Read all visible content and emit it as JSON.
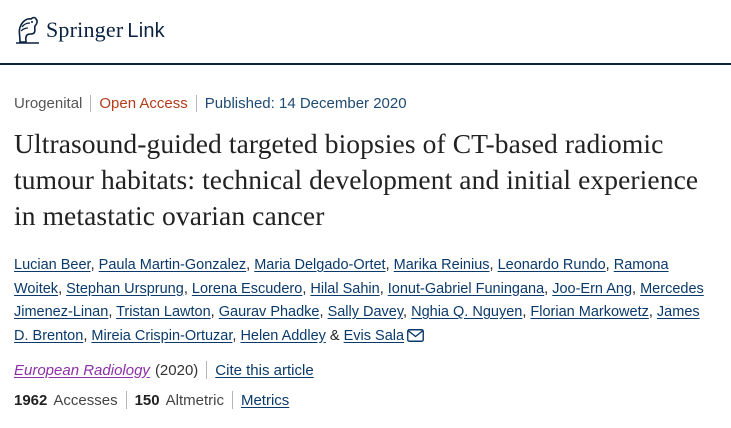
{
  "header": {
    "brand": "Springer",
    "brand_suffix": "Link"
  },
  "article": {
    "category": "Urogenital",
    "access": "Open Access",
    "published": "Published: 14 December 2020",
    "title": "Ultrasound-guided targeted biopsies of CT-based radiomic tumour habitats: technical development and initial experience in metastatic ovarian cancer",
    "authors": [
      "Lucian Beer",
      "Paula Martin-Gonzalez",
      "Maria Delgado-Ortet",
      "Marika Reinius",
      "Leonardo Rundo",
      "Ramona Woitek",
      "Stephan Ursprung",
      "Lorena Escudero",
      "Hilal Sahin",
      "Ionut-Gabriel Funingana",
      "Joo-Ern Ang",
      "Mercedes Jimenez-Linan",
      "Tristan Lawton",
      "Gaurav Phadke",
      "Sally Davey",
      "Nghia Q. Nguyen",
      "Florian Markowetz",
      "James D. Brenton",
      "Mireia Crispin-Ortuzar",
      "Helen Addley",
      "Evis Sala"
    ],
    "author_sep": ", ",
    "author_amp": " & ",
    "journal": "European Radiology",
    "year": "(2020)",
    "cite_label": "Cite this article",
    "accesses_count": "1962",
    "accesses_label": "Accesses",
    "altmetric_count": "150",
    "altmetric_label": "Altmetric",
    "metrics_label": "Metrics"
  },
  "icons": {
    "logo": "springer-horse-icon",
    "email": "envelope-icon"
  },
  "colors": {
    "brand": "#0a2240",
    "open_access": "#b53c1a",
    "link": "#0a3a6b",
    "journal": "#8d2fa7"
  }
}
